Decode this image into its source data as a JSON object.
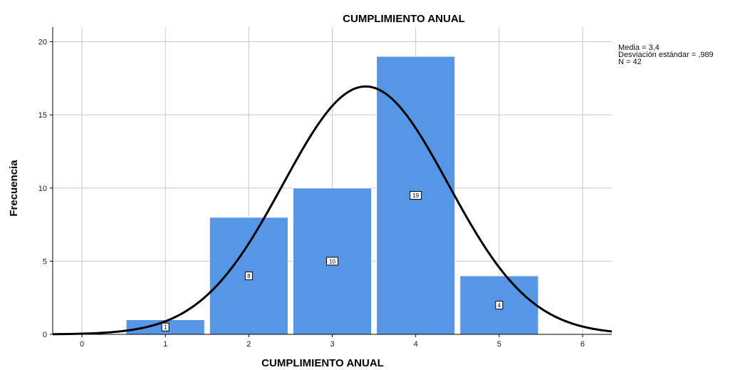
{
  "chart_data": {
    "type": "bar",
    "title": "CUMPLIMIENTO ANUAL",
    "xlabel": "CUMPLIMIENTO ANUAL",
    "ylabel": "Frecuencia",
    "categories": [
      1,
      2,
      3,
      4,
      5
    ],
    "values": [
      1,
      8,
      10,
      19,
      4
    ],
    "data_labels": [
      "1",
      "8",
      "10",
      "19",
      "4"
    ],
    "x_ticks": [
      "0",
      "1",
      "2",
      "3",
      "4",
      "5",
      "6"
    ],
    "y_ticks": [
      "0",
      "5",
      "10",
      "15",
      "20"
    ],
    "xlim": [
      -0.35,
      6.35
    ],
    "ylim": [
      0,
      21
    ],
    "grid": true,
    "bar_color": "#5596e6",
    "curve_color": "#000000",
    "normal_curve": {
      "mean": 3.4,
      "sd": 0.989,
      "n": 42,
      "bin_width": 1
    },
    "stats": [
      "Media = 3,4",
      "Desviación estándar = ,989",
      "N = 42"
    ],
    "stats_position": "top-right"
  }
}
